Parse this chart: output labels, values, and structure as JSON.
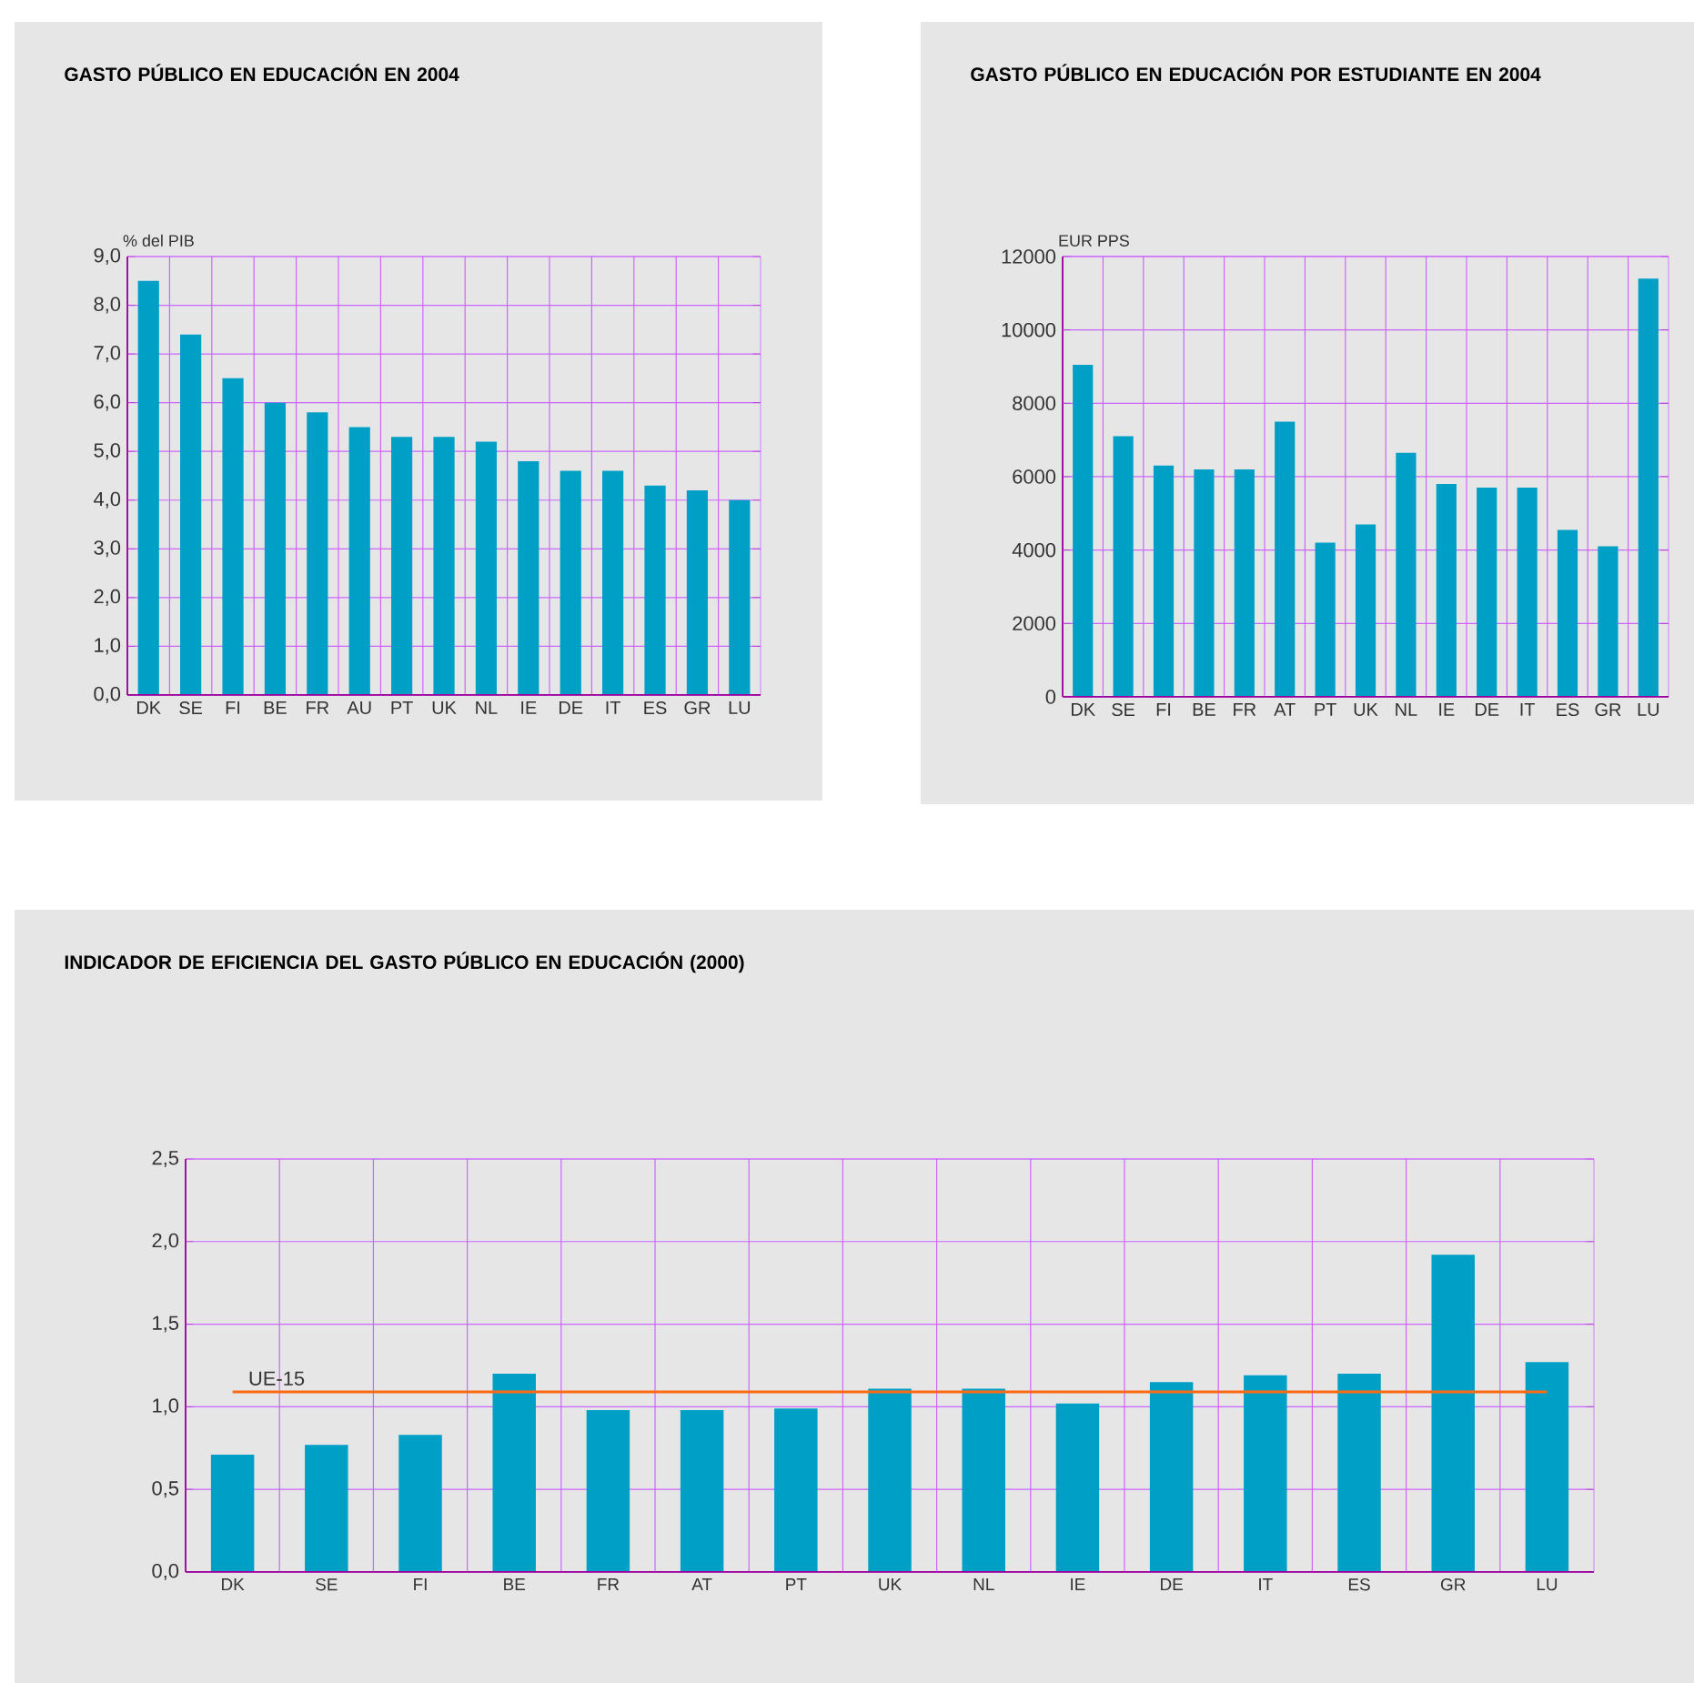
{
  "chart_data": [
    {
      "type": "bar",
      "title": "GASTO PÚBLICO EN EDUCACIÓN EN 2004",
      "ylabel": "% del PIB",
      "categories": [
        "DK",
        "SE",
        "FI",
        "BE",
        "FR",
        "AU",
        "PT",
        "UK",
        "NL",
        "IE",
        "DE",
        "IT",
        "ES",
        "GR",
        "LU"
      ],
      "values": [
        8.5,
        7.4,
        6.5,
        6.0,
        5.8,
        5.5,
        5.3,
        5.3,
        5.2,
        4.8,
        4.6,
        4.6,
        4.3,
        4.2,
        4.0
      ],
      "color": "#009fc6",
      "ylim": [
        0,
        9
      ],
      "yticks": [
        {
          "value": 0,
          "label": "0,0"
        },
        {
          "value": 1,
          "label": "1,0"
        },
        {
          "value": 2,
          "label": "2,0"
        },
        {
          "value": 3,
          "label": "3,0"
        },
        {
          "value": 4,
          "label": "4,0"
        },
        {
          "value": 5,
          "label": "5,0"
        },
        {
          "value": 6,
          "label": "6,0"
        },
        {
          "value": 7,
          "label": "7,0"
        },
        {
          "value": 8,
          "label": "8,0"
        },
        {
          "value": 9,
          "label": "9,0"
        }
      ],
      "grid": true
    },
    {
      "type": "bar",
      "title": "GASTO PÚBLICO EN EDUCACIÓN POR ESTUDIANTE EN 2004",
      "ylabel": "EUR PPS",
      "categories": [
        "DK",
        "SE",
        "FI",
        "BE",
        "FR",
        "AT",
        "PT",
        "UK",
        "NL",
        "IE",
        "DE",
        "IT",
        "ES",
        "GR",
        "LU"
      ],
      "values": [
        9050,
        7100,
        6300,
        6200,
        6200,
        7500,
        4200,
        4700,
        6650,
        5800,
        5700,
        5700,
        4550,
        4100,
        11400
      ],
      "color": "#009fc6",
      "ylim": [
        0,
        12000
      ],
      "yticks": [
        0,
        2000,
        4000,
        6000,
        8000,
        10000,
        12000
      ],
      "grid": true
    },
    {
      "type": "bar",
      "title": "INDICADOR DE EFICIENCIA DEL GASTO PÚBLICO EN EDUCACIÓN (2000)",
      "categories": [
        "DK",
        "SE",
        "FI",
        "BE",
        "FR",
        "AT",
        "PT",
        "UK",
        "NL",
        "IE",
        "DE",
        "IT",
        "ES",
        "GR",
        "LU"
      ],
      "values": [
        0.71,
        0.77,
        0.83,
        1.2,
        0.98,
        0.98,
        0.99,
        1.11,
        1.11,
        1.02,
        1.15,
        1.19,
        1.2,
        1.92,
        1.27
      ],
      "color": "#009fc6",
      "ylim": [
        0,
        2.5
      ],
      "yticks": [
        {
          "value": 0,
          "label": "0,0"
        },
        {
          "value": 0.5,
          "label": "0,5"
        },
        {
          "value": 1,
          "label": "1,0"
        },
        {
          "value": 1.5,
          "label": "1,5"
        },
        {
          "value": 2,
          "label": "2,0"
        },
        {
          "value": 2.5,
          "label": "2,5"
        }
      ],
      "ref_lines": [
        {
          "axis": "y",
          "value": 1.09,
          "label": "UE-15",
          "color": "#ff6a13"
        }
      ],
      "grid": true
    }
  ]
}
